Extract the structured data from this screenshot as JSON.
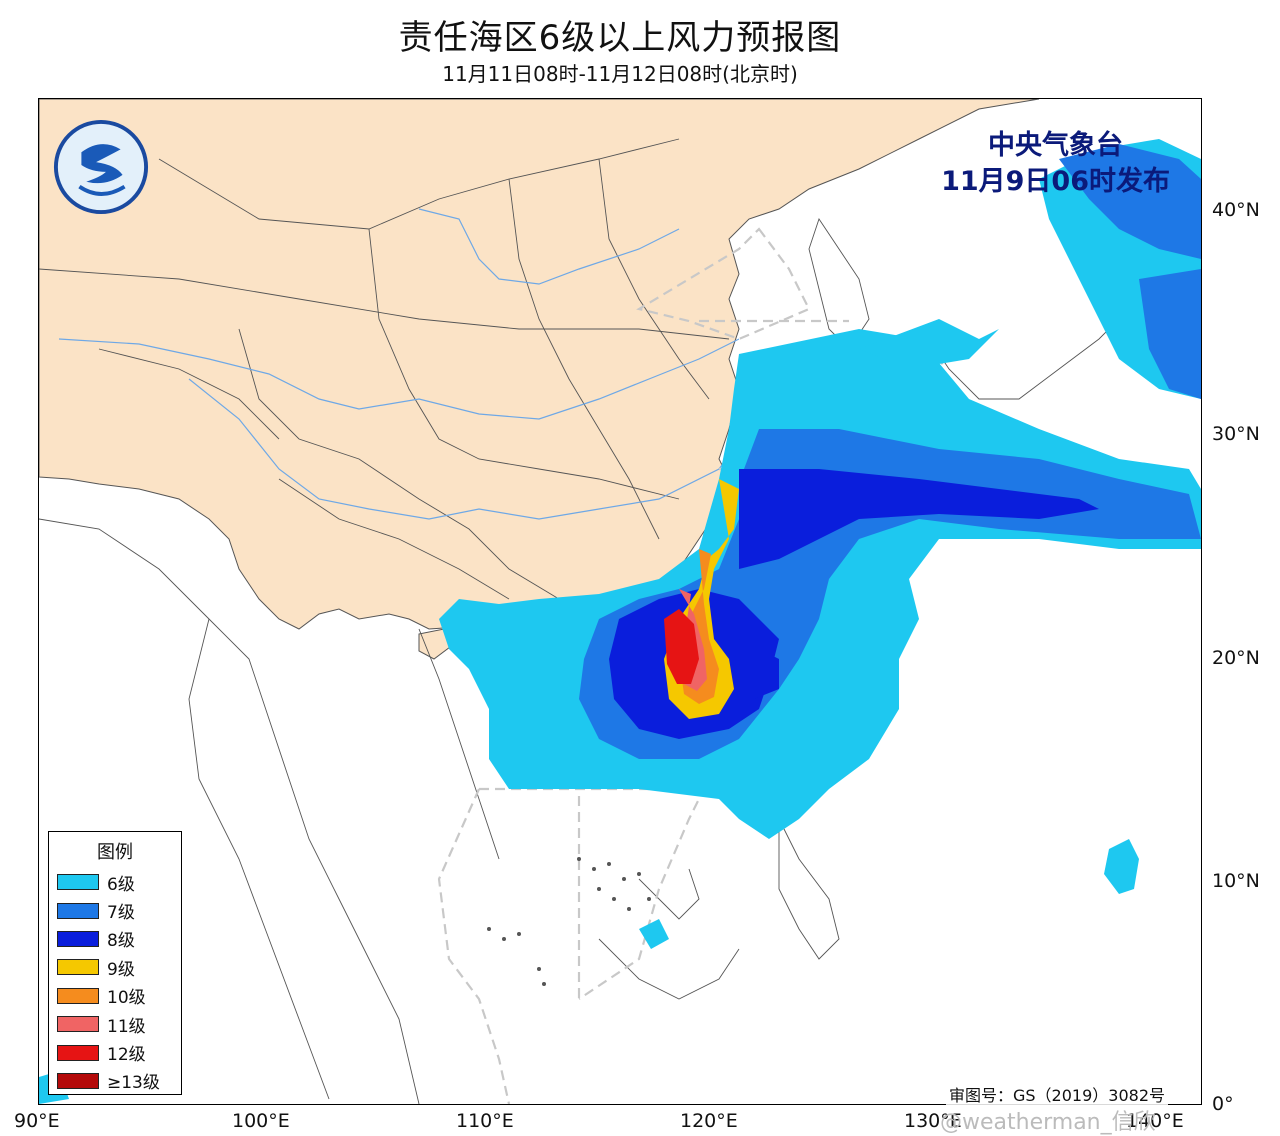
{
  "header": {
    "title": "责任海区6级以上风力预报图",
    "subtitle": "11月11日08时-11月12日08时(北京时)"
  },
  "issuer": {
    "agency": "中央气象台",
    "issued": "11月9日06时发布"
  },
  "axes": {
    "lat_labels": [
      {
        "text": "40°N",
        "value": 40
      },
      {
        "text": "30°N",
        "value": 30
      },
      {
        "text": "20°N",
        "value": 20
      },
      {
        "text": "10°N",
        "value": 10
      },
      {
        "text": "0°",
        "value": 0
      }
    ],
    "lon_labels": [
      {
        "text": "90°E",
        "value": 90
      },
      {
        "text": "100°E",
        "value": 100
      },
      {
        "text": "110°E",
        "value": 110
      },
      {
        "text": "120°E",
        "value": 120
      },
      {
        "text": "130°E",
        "value": 130
      },
      {
        "text": "140°E",
        "value": 140
      }
    ]
  },
  "legend": {
    "title": "图例",
    "items": [
      {
        "label": "6级",
        "color": "#1ec8f0"
      },
      {
        "label": "7级",
        "color": "#1e78e6"
      },
      {
        "label": "8级",
        "color": "#0a1edc"
      },
      {
        "label": "9级",
        "color": "#f5c800"
      },
      {
        "label": "10级",
        "color": "#f58c1e"
      },
      {
        "label": "11级",
        "color": "#f06464"
      },
      {
        "label": "12级",
        "color": "#e61414"
      },
      {
        "label": "≥13级",
        "color": "#b40a0a"
      }
    ]
  },
  "colors": {
    "land_china": "#fbe3c6",
    "land_other": "#ffffff",
    "sea": "#ffffff",
    "boundary": "#555555",
    "river": "#6ea8e6",
    "zone_lines": "#c8c8c8"
  },
  "footer": {
    "approval": "审图号：GS（2019）3082号",
    "watermark": "@weatherman_信欣"
  }
}
